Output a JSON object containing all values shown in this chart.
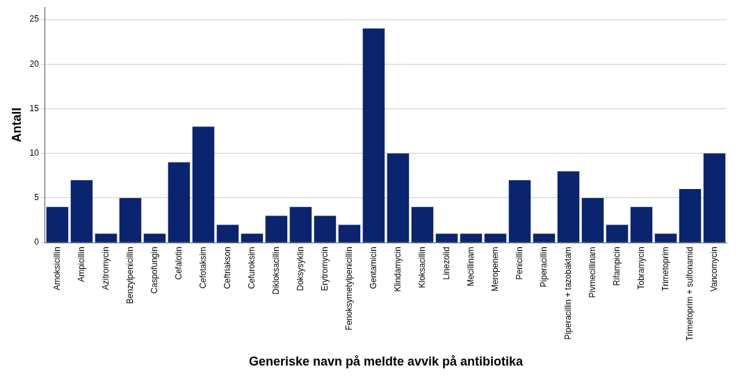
{
  "chart_data": {
    "type": "bar",
    "xlabel": "Generiske navn på meldte avvik på antibiotika",
    "ylabel": "Antall",
    "categories": [
      "Amoksicillin",
      "Ampicillin",
      "Azitromycin",
      "Benzylpenicillin",
      "Caspofungin",
      "Cefalotin",
      "Cefotaksim",
      "Ceftriakson",
      "Cefuroksim",
      "Dikloksacillin",
      "Doksysyklin",
      "Erytromycin",
      "Fenoksymetylpenicillin",
      "Gentamicin",
      "Klindamycin",
      "Kloksacillin",
      "Linezolid",
      "Mecillinam",
      "Meropenem",
      "Penicillin",
      "Piperacillin",
      "Piperacillin + tazobaktam",
      "Pivmecillinam",
      "Rifampicin",
      "Tobramycin",
      "Trimetoprim",
      "Trimetoprim + sulfonamid",
      "Vancomycin"
    ],
    "values": [
      4,
      7,
      1,
      5,
      1,
      9,
      13,
      2,
      1,
      3,
      4,
      3,
      2,
      24,
      10,
      4,
      1,
      1,
      1,
      7,
      1,
      8,
      5,
      2,
      4,
      1,
      6,
      10
    ],
    "color": "#0b2470",
    "ylim": [
      0,
      26.4
    ],
    "yticks": [
      0,
      5,
      10,
      15,
      20,
      25
    ],
    "grid": "y"
  }
}
